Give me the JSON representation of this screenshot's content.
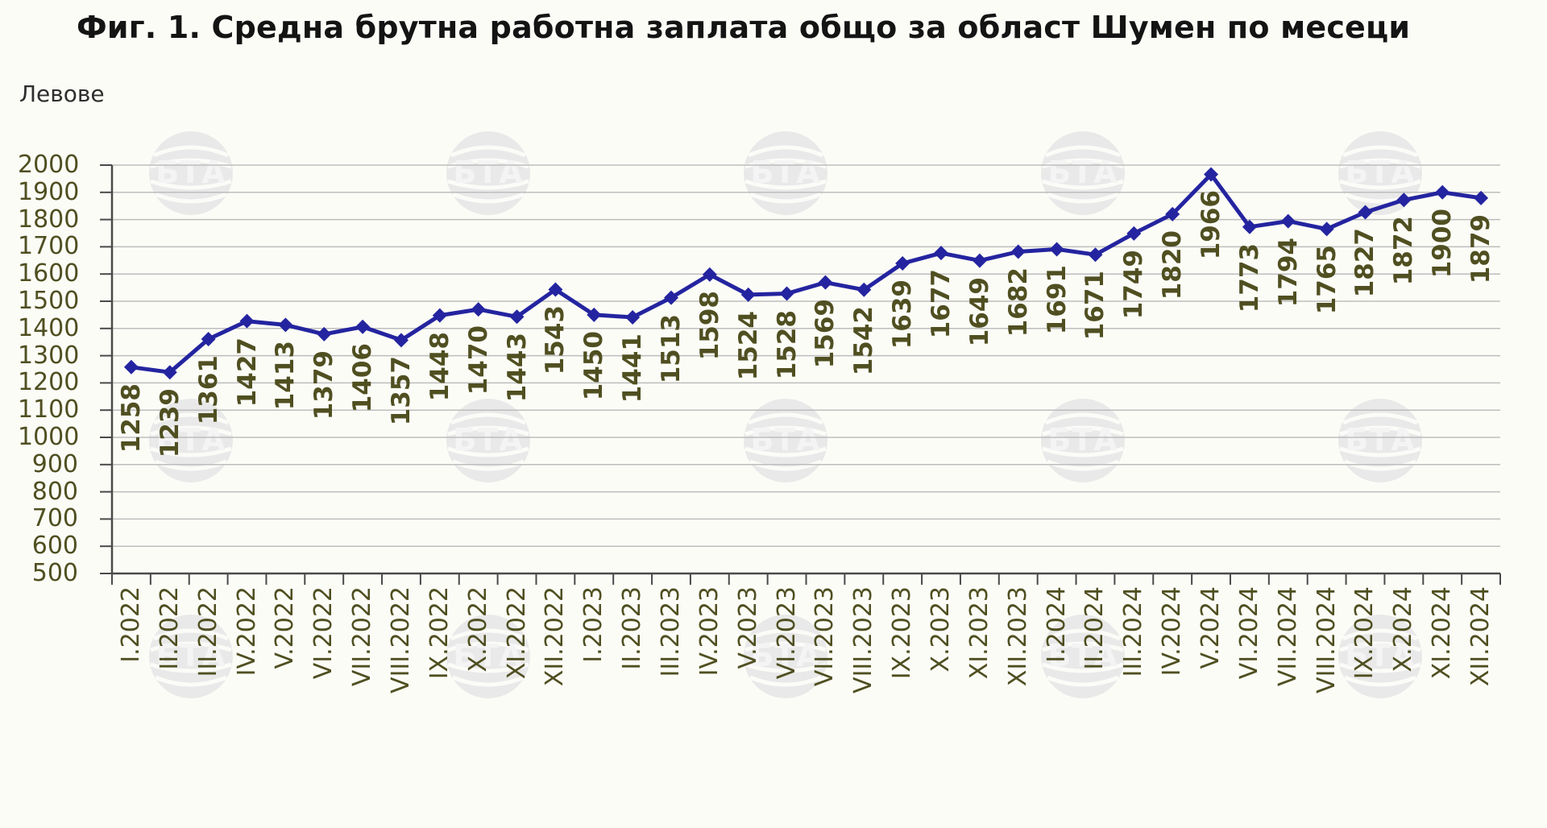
{
  "title": "Фиг. 1. Средна брутна работна заплата общо за област Шумен по месеци",
  "y_unit_label": "Левове",
  "watermark_text": "БТА",
  "colors": {
    "line": "#2424A0",
    "marker": "#2424A0",
    "axis_text": "#4F4F21",
    "gridline": "#BDBDBD",
    "axis_line": "#4A4A4A",
    "background": "#FCFCF7",
    "title_text": "#141414"
  },
  "chart_data": {
    "type": "line",
    "title": "Фиг. 1. Средна брутна работна заплата общо за област Шумен по месеци",
    "xlabel": "",
    "ylabel": "Левове",
    "ylim": [
      500,
      2000
    ],
    "ytick_step": 100,
    "ytick_labels": [
      "500",
      "600",
      "700",
      "800",
      "900",
      "1000",
      "1100",
      "1200",
      "1300",
      "1400",
      "1500",
      "1600",
      "1700",
      "1800",
      "1900",
      "2000"
    ],
    "grid": true,
    "legend": "none",
    "marker_style": "diamond",
    "categories": [
      "I.2022",
      "II.2022",
      "III.2022",
      "IV.2022",
      "V.2022",
      "VI.2022",
      "VII.2022",
      "VIII.2022",
      "IX.2022",
      "X.2022",
      "XI.2022",
      "XII.2022",
      "I.2023",
      "II.2023",
      "III.2023",
      "IV.2023",
      "V.2023",
      "VI.2023",
      "VII.2023",
      "VIII.2023",
      "IX.2023",
      "X.2023",
      "XI.2023",
      "XII.2023",
      "I.2024",
      "II.2024",
      "III.2024",
      "IV.2024",
      "V.2024",
      "VI.2024",
      "VII.2024",
      "VIII.2024",
      "IX.2024",
      "X.2024",
      "XI.2024",
      "XII.2024"
    ],
    "series": [
      {
        "name": "Средна брутна работна заплата",
        "values": [
          1258,
          1239,
          1361,
          1427,
          1413,
          1379,
          1406,
          1357,
          1448,
          1470,
          1443,
          1543,
          1450,
          1441,
          1513,
          1598,
          1524,
          1528,
          1569,
          1542,
          1639,
          1677,
          1649,
          1682,
          1691,
          1671,
          1749,
          1820,
          1966,
          1773,
          1794,
          1765,
          1827,
          1872,
          1900,
          1879
        ]
      }
    ]
  }
}
